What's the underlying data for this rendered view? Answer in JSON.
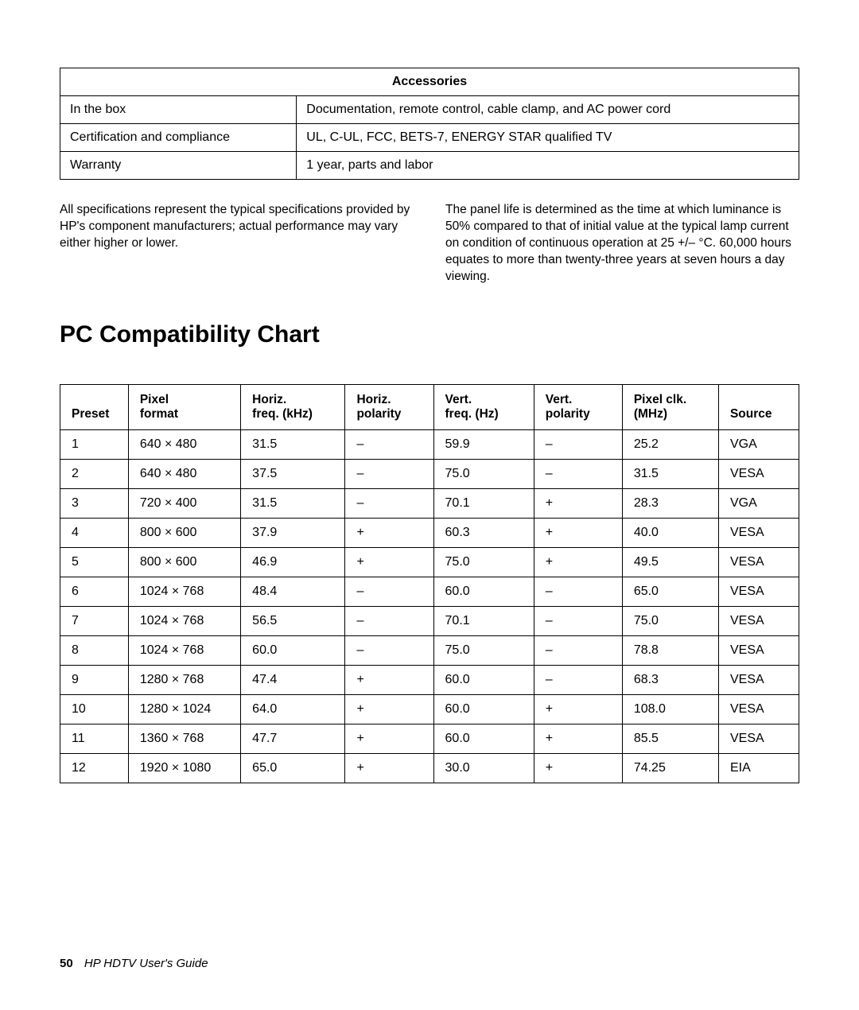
{
  "accessories_table": {
    "header": "Accessories",
    "rows": [
      {
        "label": "In the box",
        "value": "Documentation, remote control, cable clamp, and AC power cord"
      },
      {
        "label": "Certification and compliance",
        "value": "UL, C-UL, FCC, BETS-7, ENERGY STAR qualified TV"
      },
      {
        "label": "Warranty",
        "value": "1 year, parts and labor"
      }
    ]
  },
  "notes": {
    "left": "All specifications represent the typical specifications provided by HP's component manufacturers; actual performance may vary either higher or lower.",
    "right": "The panel life is determined as the time at which luminance is 50% compared to that of initial value at the typical lamp current on condition of continuous operation at 25 +/– °C. 60,000 hours equates to more than twenty-three years at seven hours a day viewing."
  },
  "section_heading": "PC Compatibility Chart",
  "compat_table": {
    "columns": [
      "Preset",
      "Pixel format",
      "Horiz. freq. (kHz)",
      "Horiz. polarity",
      "Vert. freq. (Hz)",
      "Vert. polarity",
      "Pixel clk. (MHz)",
      "Source"
    ],
    "col_widths": [
      "8.5%",
      "14%",
      "13%",
      "11%",
      "12.5%",
      "11%",
      "12%",
      "10%"
    ],
    "rows": [
      [
        "1",
        "640 × 480",
        "31.5",
        "–",
        "59.9",
        "–",
        "25.2",
        "VGA"
      ],
      [
        "2",
        "640 × 480",
        "37.5",
        "–",
        "75.0",
        "–",
        "31.5",
        "VESA"
      ],
      [
        "3",
        "720 × 400",
        "31.5",
        "–",
        "70.1",
        "+",
        "28.3",
        "VGA"
      ],
      [
        "4",
        "800 × 600",
        "37.9",
        "+",
        "60.3",
        "+",
        "40.0",
        "VESA"
      ],
      [
        "5",
        "800 × 600",
        "46.9",
        "+",
        "75.0",
        "+",
        "49.5",
        "VESA"
      ],
      [
        "6",
        "1024 × 768",
        "48.4",
        "–",
        "60.0",
        "–",
        "65.0",
        "VESA"
      ],
      [
        "7",
        "1024 × 768",
        "56.5",
        "–",
        "70.1",
        "–",
        "75.0",
        "VESA"
      ],
      [
        "8",
        "1024 × 768",
        "60.0",
        "–",
        "75.0",
        "–",
        "78.8",
        "VESA"
      ],
      [
        "9",
        "1280 × 768",
        "47.4",
        "+",
        "60.0",
        "–",
        "68.3",
        "VESA"
      ],
      [
        "10",
        "1280 × 1024",
        "64.0",
        "+",
        "60.0",
        "+",
        "108.0",
        "VESA"
      ],
      [
        "11",
        "1360 × 768",
        "47.7",
        "+",
        "60.0",
        "+",
        "85.5",
        "VESA"
      ],
      [
        "12",
        "1920 × 1080",
        "65.0",
        "+",
        "30.0",
        "+",
        "74.25",
        "EIA"
      ]
    ]
  },
  "footer": {
    "page": "50",
    "title": "HP HDTV User's Guide"
  }
}
